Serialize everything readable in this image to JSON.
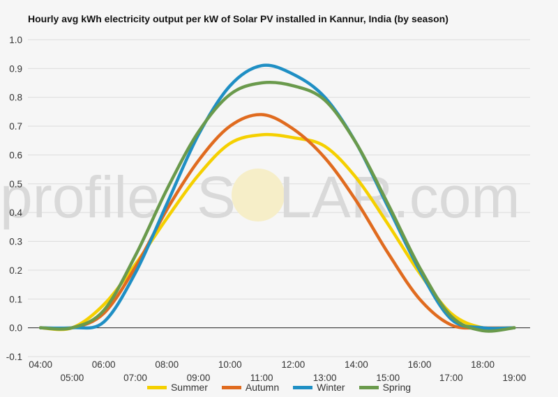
{
  "title": "Hourly avg kWh electricity output per kW of Solar PV installed in Kannur, India (by season)",
  "watermark": {
    "left": "profile",
    "middle": "S",
    "right": "LAR.com",
    "sun_color": "#f6eec8"
  },
  "chart_data": {
    "type": "line",
    "title": "Hourly avg kWh electricity output per kW of Solar PV installed in Kannur, India (by season)",
    "xlabel": "",
    "ylabel": "",
    "ylim": [
      -0.1,
      1.0
    ],
    "yticks": [
      -0.1,
      0.0,
      0.1,
      0.2,
      0.3,
      0.4,
      0.5,
      0.6,
      0.7,
      0.8,
      0.9,
      1.0
    ],
    "ytick_labels": [
      "-0.1",
      "0.0",
      "0.1",
      "0.2",
      "0.3",
      "0.4",
      "0.5",
      "0.6",
      "0.7",
      "0.8",
      "0.9",
      "1.0"
    ],
    "xlim": [
      3.6,
      19.5
    ],
    "xticks_upper": [
      "04:00",
      "06:00",
      "08:00",
      "10:00",
      "12:00",
      "14:00",
      "16:00",
      "18:00"
    ],
    "xticks_lower": [
      "05:00",
      "07:00",
      "09:00",
      "11:00",
      "13:00",
      "15:00",
      "17:00",
      "19:00"
    ],
    "x": [
      4,
      5,
      6,
      7,
      8,
      9,
      10,
      11,
      12,
      13,
      14,
      15,
      16,
      17,
      18,
      19
    ],
    "grid": true,
    "legend_position": "bottom",
    "series": [
      {
        "name": "Summer",
        "color": "#f5d000",
        "values": [
          0.0,
          0.0,
          0.08,
          0.22,
          0.38,
          0.53,
          0.64,
          0.67,
          0.66,
          0.63,
          0.52,
          0.36,
          0.19,
          0.05,
          0.0,
          0.0
        ]
      },
      {
        "name": "Autumn",
        "color": "#e06b1f",
        "values": [
          0.0,
          0.0,
          0.05,
          0.21,
          0.41,
          0.58,
          0.7,
          0.74,
          0.69,
          0.59,
          0.44,
          0.26,
          0.1,
          0.01,
          0.0,
          0.0
        ]
      },
      {
        "name": "Winter",
        "color": "#1f8fc4",
        "values": [
          0.0,
          0.0,
          0.02,
          0.19,
          0.43,
          0.67,
          0.84,
          0.91,
          0.88,
          0.8,
          0.64,
          0.42,
          0.2,
          0.03,
          0.0,
          0.0
        ]
      },
      {
        "name": "Spring",
        "color": "#6a9a4c",
        "values": [
          0.0,
          0.0,
          0.06,
          0.25,
          0.48,
          0.68,
          0.81,
          0.85,
          0.84,
          0.79,
          0.64,
          0.43,
          0.21,
          0.04,
          -0.01,
          0.0
        ]
      }
    ]
  }
}
